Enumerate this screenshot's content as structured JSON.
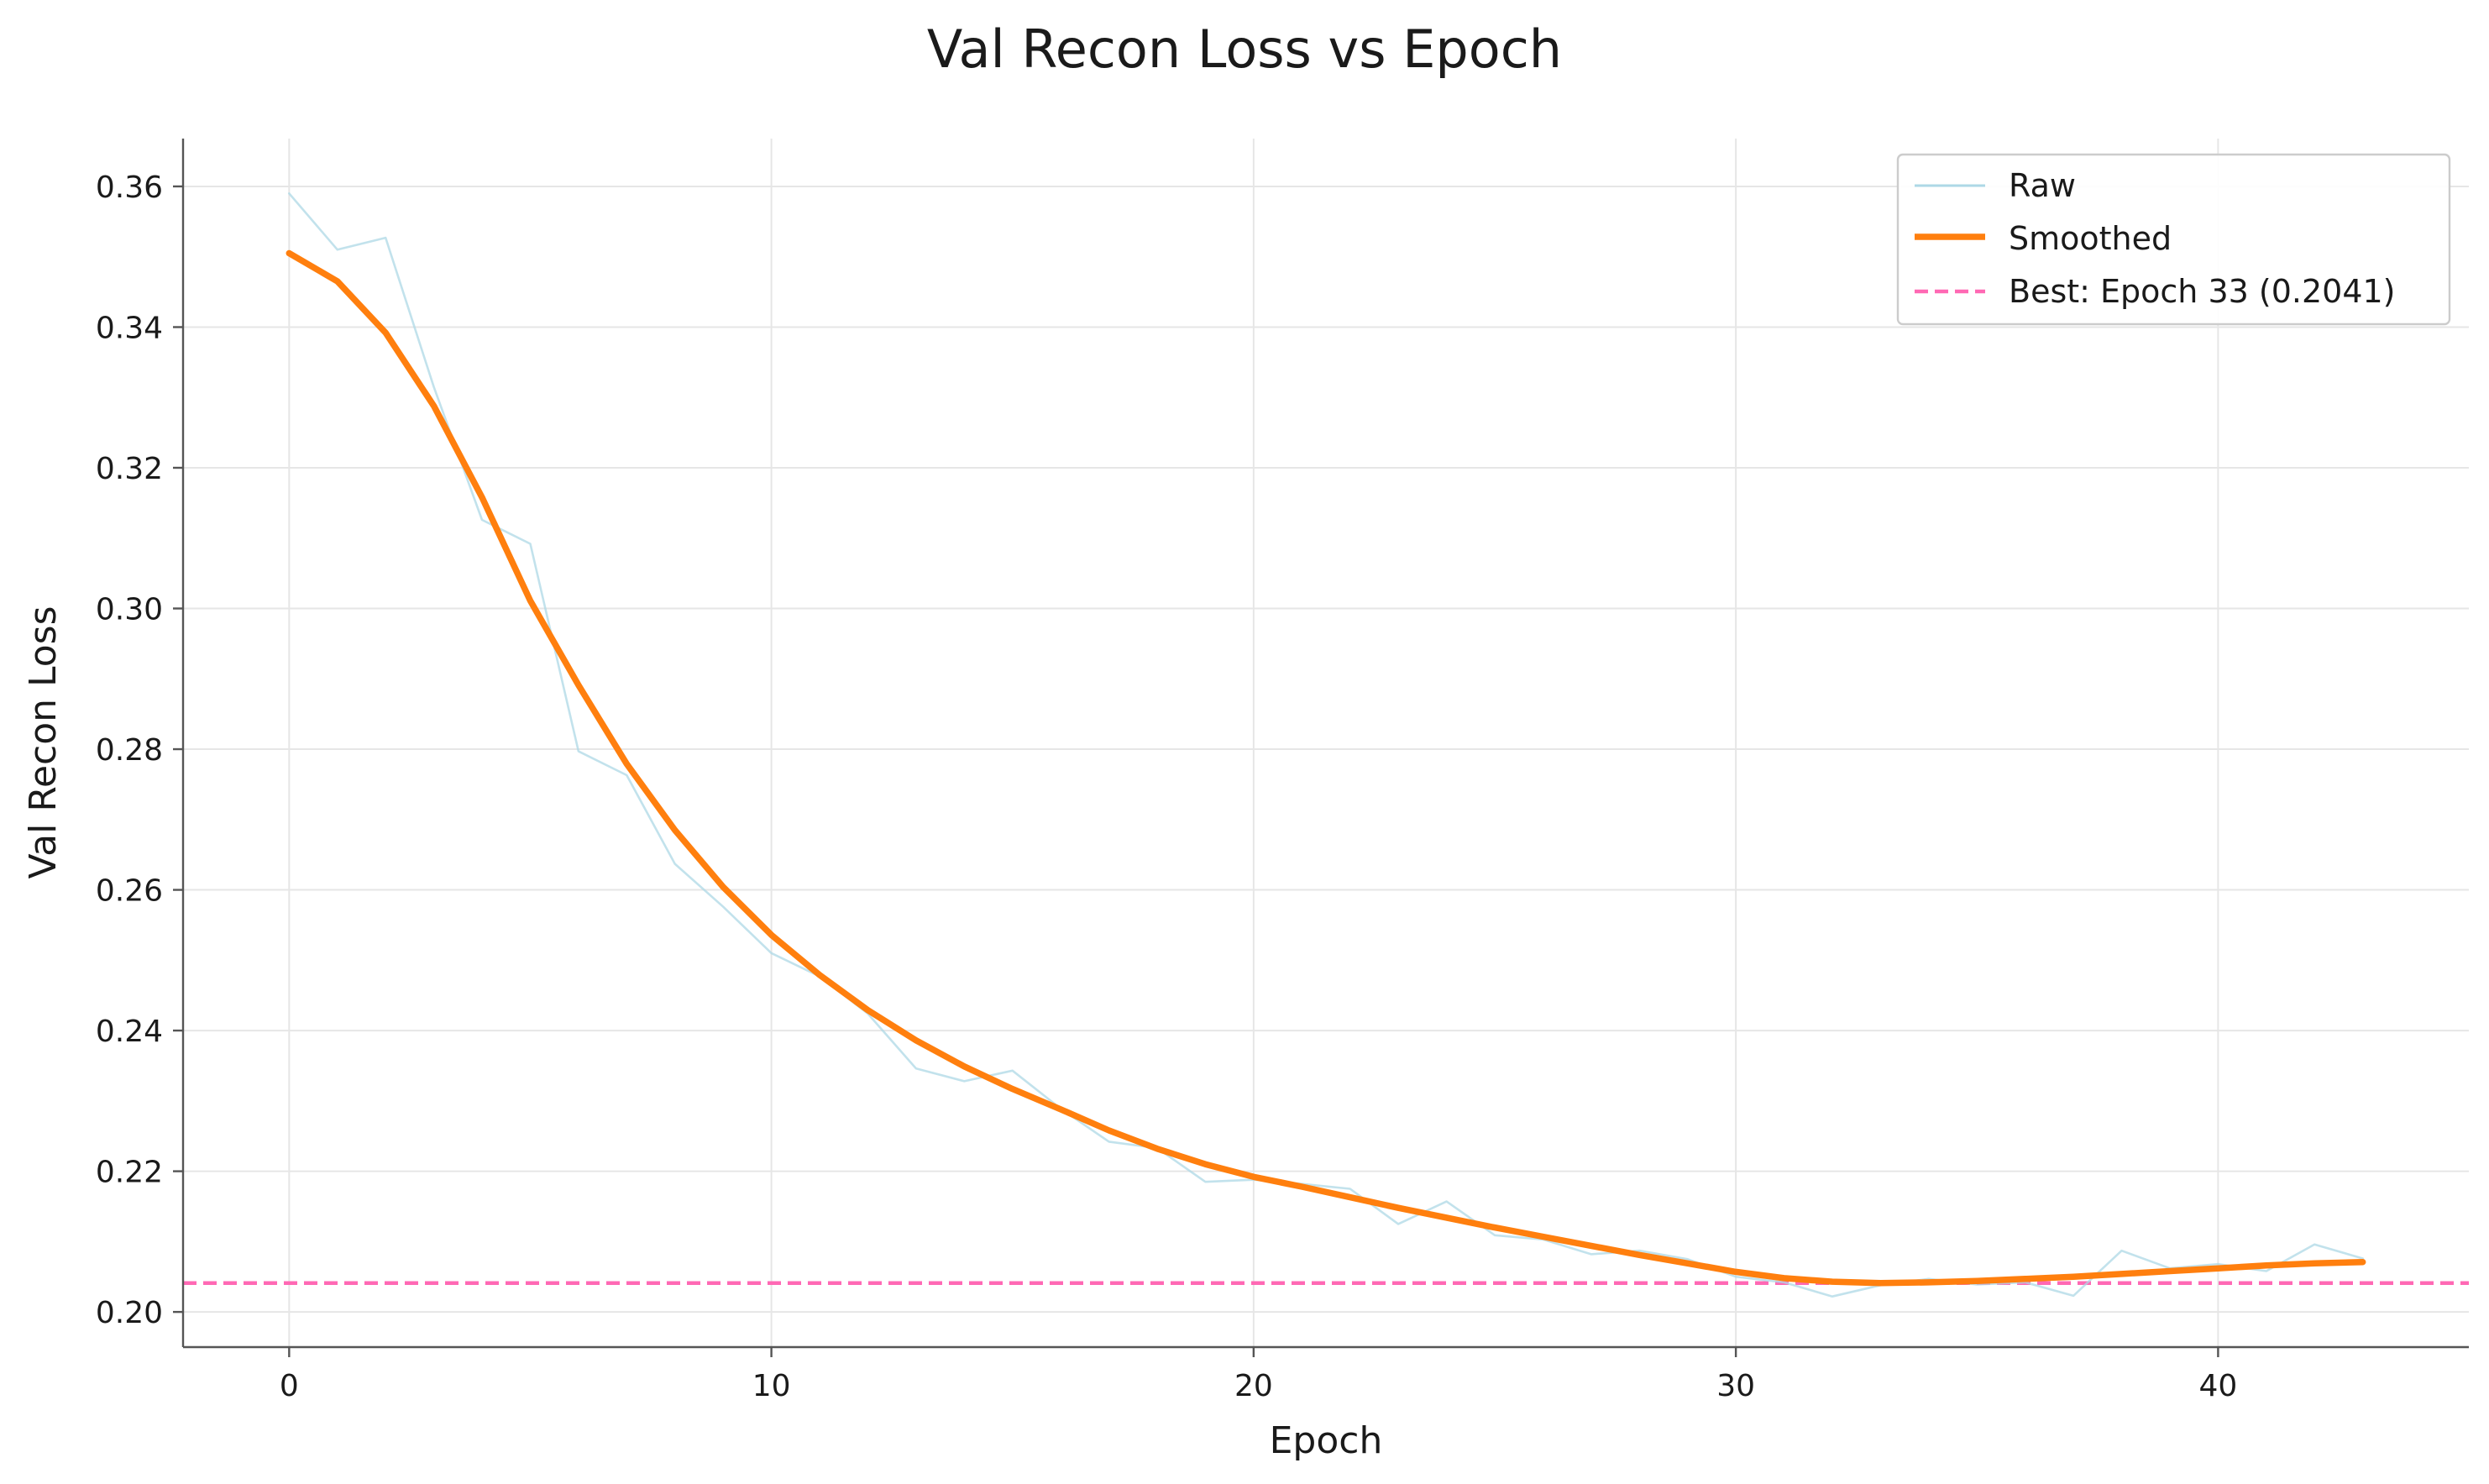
{
  "chart_data": {
    "type": "line",
    "title": "Val Recon Loss vs Epoch",
    "xlabel": "Epoch",
    "ylabel": "Val Recon Loss",
    "xlim": [
      -2.2,
      45.2
    ],
    "ylim": [
      0.195,
      0.3668
    ],
    "xticks": [
      0,
      10,
      20,
      30,
      40
    ],
    "yticks": [
      0.2,
      0.22,
      0.24,
      0.26,
      0.28,
      0.3,
      0.32,
      0.34,
      0.36
    ],
    "xtick_labels": [
      "0",
      "10",
      "20",
      "30",
      "40"
    ],
    "ytick_labels": [
      "0.20",
      "0.22",
      "0.24",
      "0.26",
      "0.28",
      "0.30",
      "0.32",
      "0.34",
      "0.36"
    ],
    "grid": true,
    "legend_position": "top-right",
    "series": [
      {
        "name": "Raw",
        "color": "#add8e6",
        "x": [
          0,
          1,
          2,
          3,
          4,
          5,
          6,
          7,
          8,
          9,
          10,
          11,
          12,
          13,
          14,
          15,
          16,
          17,
          18,
          19,
          20,
          21,
          22,
          23,
          24,
          25,
          26,
          27,
          28,
          29,
          30,
          31,
          32,
          33,
          34,
          35,
          36,
          37,
          38,
          39,
          40,
          41,
          42,
          43
        ],
        "values": [
          0.359,
          0.351,
          0.3527,
          0.3315,
          0.3126,
          0.3092,
          0.2797,
          0.2763,
          0.2637,
          0.2576,
          0.251,
          0.2477,
          0.2424,
          0.2346,
          0.2328,
          0.2343,
          0.2289,
          0.2242,
          0.2233,
          0.2185,
          0.2188,
          0.2182,
          0.2175,
          0.2125,
          0.2157,
          0.2109,
          0.2103,
          0.2082,
          0.2087,
          0.2075,
          0.205,
          0.2042,
          0.2022,
          0.2038,
          0.2047,
          0.2039,
          0.2042,
          0.2023,
          0.2087,
          0.2062,
          0.2068,
          0.2058,
          0.2096,
          0.2076
        ]
      },
      {
        "name": "Smoothed",
        "color": "#ff7f0e",
        "x": [
          0,
          1,
          2,
          3,
          4,
          5,
          6,
          7,
          8,
          9,
          10,
          11,
          12,
          13,
          14,
          15,
          16,
          17,
          18,
          19,
          20,
          21,
          22,
          23,
          24,
          25,
          26,
          27,
          28,
          29,
          30,
          31,
          32,
          33,
          34,
          35,
          36,
          37,
          38,
          39,
          40,
          41,
          42,
          43
        ],
        "values": [
          0.3505,
          0.3465,
          0.3392,
          0.3288,
          0.3158,
          0.3011,
          0.2891,
          0.2779,
          0.2685,
          0.2604,
          0.2536,
          0.2479,
          0.2429,
          0.2386,
          0.2349,
          0.2317,
          0.2288,
          0.2258,
          0.2232,
          0.221,
          0.2192,
          0.2178,
          0.2163,
          0.2148,
          0.2134,
          0.212,
          0.2107,
          0.2094,
          0.2081,
          0.2069,
          0.2057,
          0.2048,
          0.2043,
          0.2041,
          0.2042,
          0.2044,
          0.2047,
          0.205,
          0.2054,
          0.2058,
          0.2062,
          0.2066,
          0.2069,
          0.2071
        ]
      }
    ],
    "reference_line": {
      "label": "Best: Epoch 33 (0.2041)",
      "y": 0.2041,
      "color": "#ff69b4",
      "style": "dashed"
    },
    "legend": {
      "entries": [
        "Raw",
        "Smoothed",
        "Best: Epoch 33 (0.2041)"
      ]
    }
  }
}
